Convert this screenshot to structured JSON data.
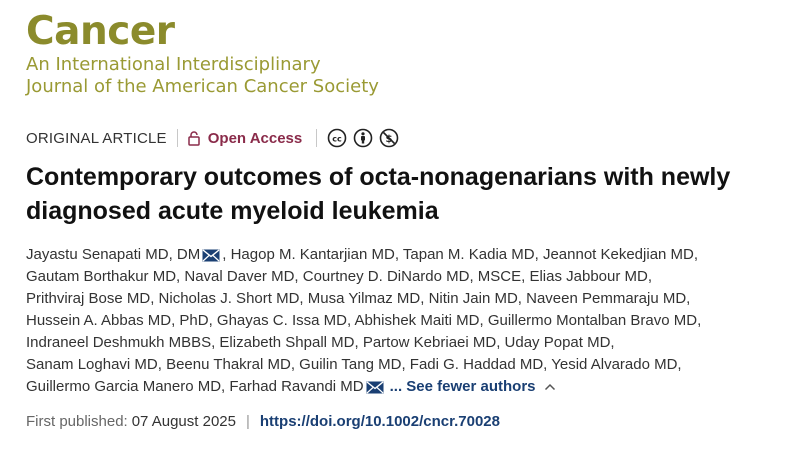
{
  "journal": {
    "name": "Cancer",
    "subtitle_line1": "An International Interdisciplinary",
    "subtitle_line2": "Journal of the American Cancer Society"
  },
  "article": {
    "type": "ORIGINAL ARTICLE",
    "open_access": "Open Access",
    "title_line1": "Contemporary outcomes of octa-nonagenarians with newly",
    "title_line2": "diagnosed acute myeloid leukemia"
  },
  "authors": {
    "lines": [
      [
        "Jayastu Senapati MD, DM",
        "",
        ", Hagop M. Kantarjian MD, Tapan M. Kadia MD, Jeannot Kekedjian MD,"
      ],
      [
        "Gautam Borthakur MD, Naval Daver MD, Courtney D. DiNardo MD, MSCE, Elias Jabbour MD,"
      ],
      [
        "Prithviraj Bose MD, Nicholas J. Short MD, Musa Yilmaz MD, Nitin Jain MD, Naveen Pemmaraju MD,"
      ],
      [
        "Hussein A. Abbas MD, PhD, Ghayas C. Issa MD, Abhishek Maiti MD, Guillermo Montalban Bravo MD,"
      ],
      [
        "Indraneel Deshmukh MBBS, Elizabeth Shpall MD, Partow Kebriaei MD, Uday Popat MD,"
      ],
      [
        "Sanam Loghavi MD, Beenu Thakral MD, Guilin Tang MD, Fadi G. Haddad MD, Yesid Alvarado MD,"
      ],
      [
        "Guillermo Garcia Manero MD, Farhad Ravandi MD"
      ]
    ],
    "see_fewer": "... See fewer authors"
  },
  "publication": {
    "label": "First published:",
    "date": "07 August 2025",
    "separator": "|",
    "doi": "https://doi.org/10.1002/cncr.70028"
  },
  "colors": {
    "journal": "#8b8b2c",
    "open_access": "#8a2b4a",
    "link": "#1a3f73"
  },
  "icons": [
    "lock-icon",
    "cc-icon",
    "by-icon",
    "nc-icon",
    "mail-icon",
    "chevron-up-icon"
  ]
}
